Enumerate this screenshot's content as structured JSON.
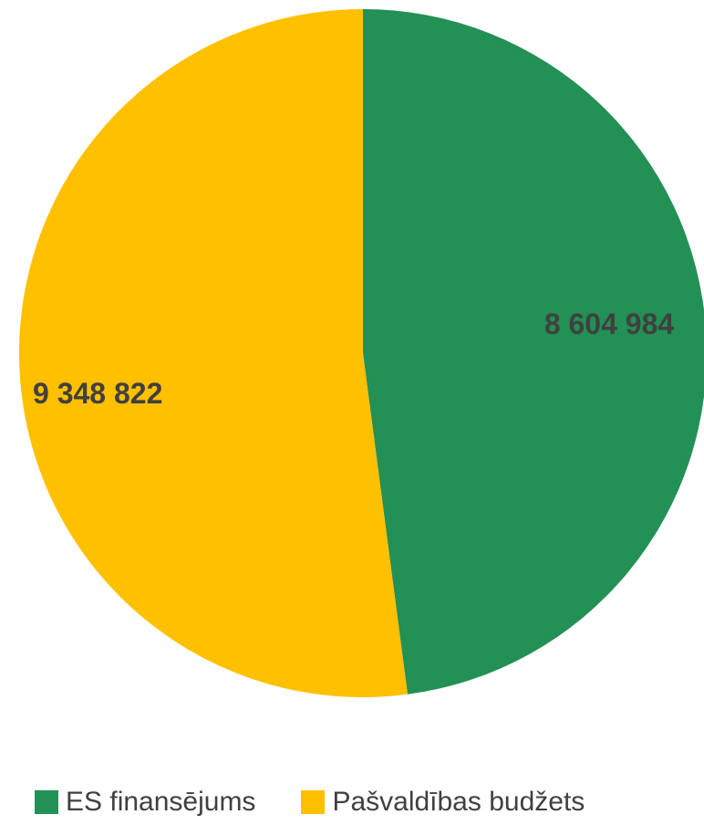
{
  "chart_data": {
    "type": "pie",
    "categories": [
      "ES finansējums",
      "Pašvaldības budžets"
    ],
    "values": [
      8604984,
      9348822
    ],
    "value_labels": [
      "8 604 984",
      "9 348 822"
    ],
    "colors": [
      "#239056",
      "#FFC000"
    ],
    "legend_position": "bottom",
    "start_angle": "12 o'clock",
    "direction": "clockwise"
  },
  "legend": {
    "items": [
      {
        "label": "ES finansējums",
        "color": "#239056"
      },
      {
        "label": "Pašvaldības budžets",
        "color": "#FFC000"
      }
    ]
  }
}
